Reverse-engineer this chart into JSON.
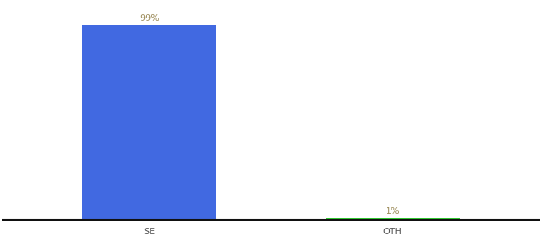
{
  "categories": [
    "SE",
    "OTH"
  ],
  "values": [
    99,
    1
  ],
  "bar_colors": [
    "#4169e1",
    "#32cd32"
  ],
  "labels": [
    "99%",
    "1%"
  ],
  "ylim": [
    0,
    110
  ],
  "background_color": "#ffffff",
  "label_color": "#a09060",
  "label_fontsize": 8,
  "tick_fontsize": 8,
  "tick_color": "#555555",
  "spine_color": "#111111",
  "bar_width": 0.55
}
